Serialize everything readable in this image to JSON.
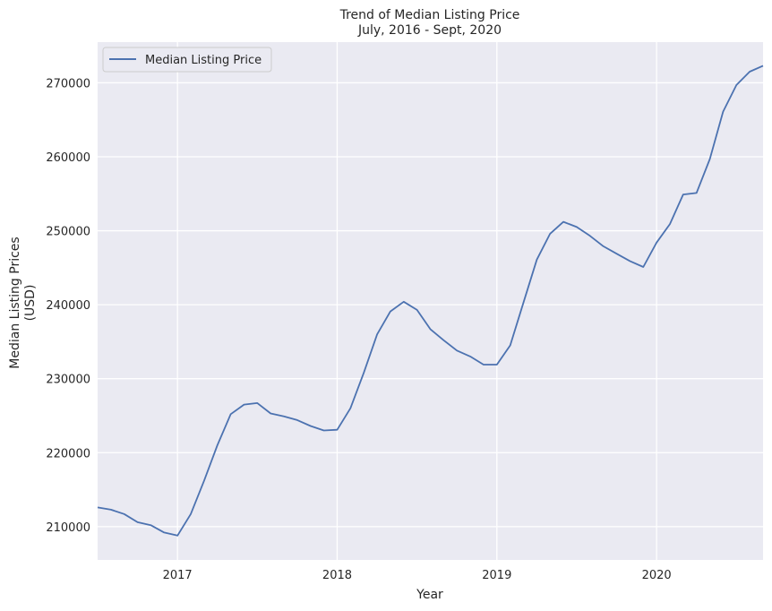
{
  "chart_data": {
    "type": "line",
    "title": "Trend of Median Listing Price",
    "subtitle": "July, 2016 - Sept, 2020",
    "xlabel": "Year",
    "ylabel": "Median Listing Prices",
    "ylabel_unit": "(USD)",
    "xlim": [
      "2016-07",
      "2020-09"
    ],
    "ylim": [
      205500,
      275500
    ],
    "x_ticks": [
      "2017",
      "2018",
      "2019",
      "2020"
    ],
    "y_ticks": [
      "210000",
      "220000",
      "230000",
      "240000",
      "250000",
      "260000",
      "270000"
    ],
    "grid": true,
    "legend_position": "top-left",
    "series": [
      {
        "name": "Median Listing Price",
        "color": "#4c72b0",
        "x": [
          "2016-07",
          "2016-08",
          "2016-09",
          "2016-10",
          "2016-11",
          "2016-12",
          "2017-01",
          "2017-02",
          "2017-03",
          "2017-04",
          "2017-05",
          "2017-06",
          "2017-07",
          "2017-08",
          "2017-09",
          "2017-10",
          "2017-11",
          "2017-12",
          "2018-01",
          "2018-02",
          "2018-03",
          "2018-04",
          "2018-05",
          "2018-06",
          "2018-07",
          "2018-08",
          "2018-09",
          "2018-10",
          "2018-11",
          "2018-12",
          "2019-01",
          "2019-02",
          "2019-03",
          "2019-04",
          "2019-05",
          "2019-06",
          "2019-07",
          "2019-08",
          "2019-09",
          "2019-10",
          "2019-11",
          "2019-12",
          "2020-01",
          "2020-02",
          "2020-03",
          "2020-04",
          "2020-05",
          "2020-06",
          "2020-07",
          "2020-08",
          "2020-09"
        ],
        "values": [
          212600,
          212300,
          211700,
          210600,
          210200,
          209200,
          208800,
          211700,
          216200,
          221000,
          225200,
          226500,
          226700,
          225300,
          224900,
          224400,
          223600,
          223000,
          223100,
          226000,
          230800,
          236000,
          239100,
          240400,
          239300,
          236700,
          235200,
          233800,
          233000,
          231900,
          231900,
          234500,
          240300,
          246100,
          249600,
          251200,
          250500,
          249300,
          247900,
          246900,
          245900,
          245100,
          248400,
          250900,
          254900,
          255100,
          259700,
          266100,
          269700,
          271500,
          272300
        ]
      }
    ]
  }
}
